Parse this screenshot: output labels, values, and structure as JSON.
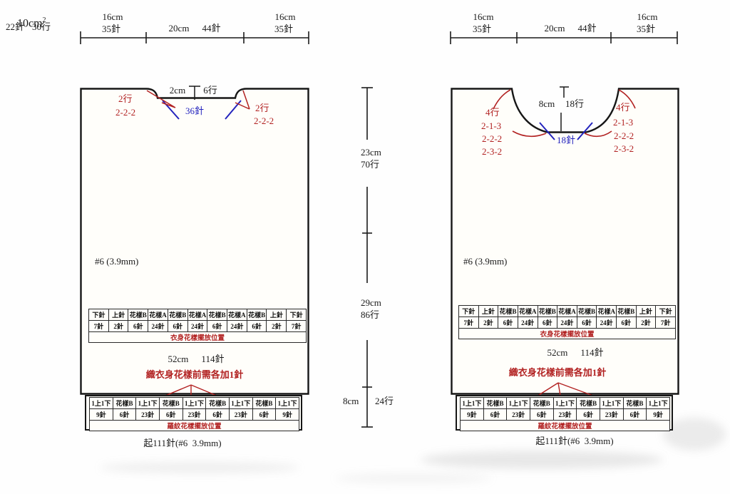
{
  "gauge": {
    "area": "10cm",
    "area_exp": "2",
    "stitches": "22針",
    "rows": "30行"
  },
  "palette": {
    "ink": "#1a1a1a",
    "red": "#b22222",
    "blue": "#2323bd",
    "paper": "#fefefe"
  },
  "side_dim": {
    "upper": {
      "cm": "23cm",
      "rows": "70行"
    },
    "middle": {
      "cm": "29cm",
      "rows": "86行"
    },
    "lower": {
      "cm": "8cm",
      "rows": "24行"
    }
  },
  "pieces": {
    "back": {
      "top_dim": {
        "segments": [
          {
            "cm": "16cm",
            "st": "35針"
          },
          {
            "cm": "20cm",
            "st": "44針"
          },
          {
            "cm": "16cm",
            "st": "35針"
          }
        ]
      },
      "neck": {
        "width": "2cm",
        "rows": "6行",
        "stitches": "36針"
      },
      "neck_shaping_left": [
        "2行",
        "2-2-2"
      ],
      "neck_shaping_right": [
        "2行",
        "2-2-2"
      ],
      "needle": "#6 (3.9mm)",
      "body_table": {
        "header": [
          "下針",
          "上針",
          "花樣B",
          "花樣A",
          "花樣B",
          "花樣A",
          "花樣B",
          "花樣A",
          "花樣B",
          "上針",
          "下針"
        ],
        "counts": [
          "7針",
          "2針",
          "6針",
          "24針",
          "6針",
          "24針",
          "6針",
          "24針",
          "6針",
          "2針",
          "7針"
        ],
        "caption": "衣身花樣擺放位置"
      },
      "bottom_width": {
        "cm": "52cm",
        "st": "114針"
      },
      "add_stitch_note": "織衣身花樣前需各加1針",
      "rib_table": {
        "header": [
          "1上1下",
          "花樣B",
          "1上1下",
          "花樣B",
          "1上1下",
          "花樣B",
          "1上1下",
          "花樣B",
          "1上1下"
        ],
        "counts": [
          "9針",
          "6針",
          "23針",
          "6針",
          "23針",
          "6針",
          "23針",
          "6針",
          "9針"
        ],
        "caption": "羅紋花樣擺放位置"
      },
      "cast_on": "起111針(#6  3.9mm)"
    },
    "front": {
      "top_dim": {
        "segments": [
          {
            "cm": "16cm",
            "st": "35針"
          },
          {
            "cm": "20cm",
            "st": "44針"
          },
          {
            "cm": "16cm",
            "st": "35針"
          }
        ]
      },
      "neck": {
        "width": "8cm",
        "rows": "18行",
        "stitches": "18針"
      },
      "neck_shaping_left": [
        "4行",
        "2-1-3",
        "2-2-2",
        "2-3-2"
      ],
      "neck_shaping_right": [
        "4行",
        "2-1-3",
        "2-2-2",
        "2-3-2"
      ],
      "needle": "#6 (3.9mm)",
      "body_table": {
        "header": [
          "下針",
          "上針",
          "花樣B",
          "花樣A",
          "花樣B",
          "花樣A",
          "花樣B",
          "花樣A",
          "花樣B",
          "上針",
          "下針"
        ],
        "counts": [
          "7針",
          "2針",
          "6針",
          "24針",
          "6針",
          "24針",
          "6針",
          "24針",
          "6針",
          "2針",
          "7針"
        ],
        "caption": "衣身花樣擺放位置"
      },
      "bottom_width": {
        "cm": "52cm",
        "st": "114針"
      },
      "add_stitch_note": "織衣身花樣前需各加1針",
      "rib_table": {
        "header": [
          "1上1下",
          "花樣B",
          "1上1下",
          "花樣B",
          "1上1下",
          "花樣B",
          "1上1下",
          "花樣B",
          "1上1下"
        ],
        "counts": [
          "9針",
          "6針",
          "23針",
          "6針",
          "23針",
          "6針",
          "23針",
          "6針",
          "9針"
        ],
        "caption": "羅紋花樣擺放位置"
      },
      "cast_on": "起111針(#6  3.9mm)"
    }
  }
}
